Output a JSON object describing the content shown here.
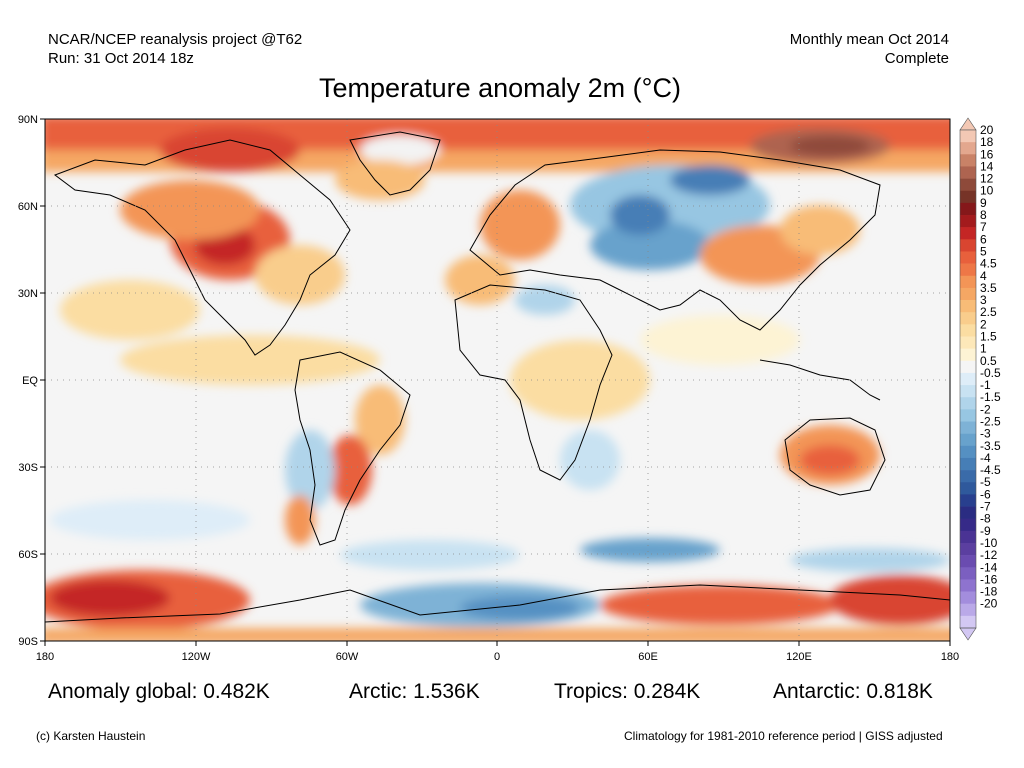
{
  "header": {
    "source_line": "NCAR/NCEP reanalysis project @T62",
    "run_line": "Run: 31 Oct 2014 18z",
    "period_line": "Monthly mean Oct 2014",
    "status_line": "Complete"
  },
  "title": "Temperature anomaly 2m (°C)",
  "map": {
    "lat_ticks": [
      "90N",
      "60N",
      "30N",
      "EQ",
      "30S",
      "60S",
      "90S"
    ],
    "lon_ticks": [
      "180",
      "120W",
      "60W",
      "0",
      "60E",
      "120E",
      "180"
    ]
  },
  "colorbar": {
    "labels": [
      "20",
      "18",
      "16",
      "14",
      "12",
      "10",
      "9",
      "8",
      "7",
      "6",
      "5",
      "4.5",
      "4",
      "3.5",
      "3",
      "2.5",
      "2",
      "1.5",
      "1",
      "0.5",
      "-0.5",
      "-1",
      "-1.5",
      "-2",
      "-2.5",
      "-3",
      "-3.5",
      "-4",
      "-4.5",
      "-5",
      "-6",
      "-7",
      "-8",
      "-9",
      "-10",
      "-12",
      "-14",
      "-16",
      "-18",
      "-20"
    ],
    "colors": [
      "#f3c8b4",
      "#e3a78e",
      "#c98267",
      "#ae6450",
      "#8e4a3a",
      "#763327",
      "#85181a",
      "#a31b1d",
      "#c42625",
      "#d94530",
      "#e8603c",
      "#ee7747",
      "#f39557",
      "#f5a764",
      "#f8bc77",
      "#f9cd8c",
      "#fbdda2",
      "#fde8b9",
      "#fdf3d4",
      "#f5f5f5",
      "#deedf8",
      "#c8e2f2",
      "#b0d4ea",
      "#97c6e2",
      "#7eb2d6",
      "#68a2cc",
      "#5590c2",
      "#467eb6",
      "#3a6ba9",
      "#2f599c",
      "#283f8e",
      "#2a2c82",
      "#362a88",
      "#4a3394",
      "#5b3fa0",
      "#6a4cb0",
      "#7b5fc0",
      "#8e73cf",
      "#a38ddd",
      "#baa9e8",
      "#d3c8f3"
    ]
  },
  "stats": {
    "global": "Anomaly global: 0.482K",
    "arctic": "Arctic: 1.536K",
    "tropics": "Tropics: 0.284K",
    "antarctic": "Antarctic: 0.818K"
  },
  "footer": {
    "credit": "(c) Karsten Haustein",
    "note": "Climatology for 1981-2010 reference period | GISS adjusted"
  }
}
